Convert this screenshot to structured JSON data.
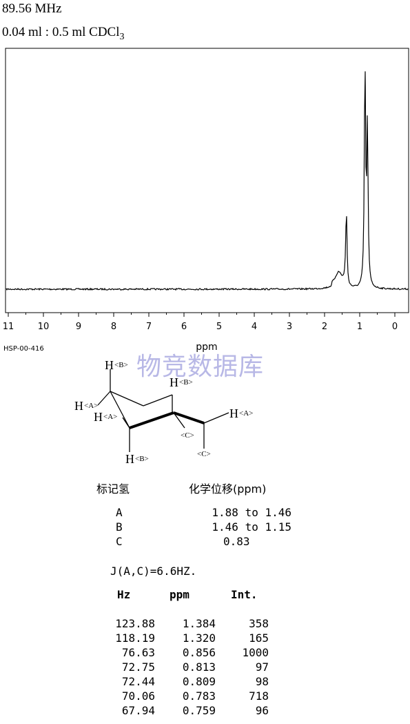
{
  "header": {
    "frequency": "89.56 MHz",
    "solvent_prefix": "0.04 ml : 0.5 ml CDCl",
    "solvent_subscript": "3"
  },
  "chart_data": {
    "type": "line",
    "xlabel": "ppm",
    "xlim": [
      11,
      0
    ],
    "x_reversed": true,
    "ticks": [
      "11",
      "10",
      "9",
      "8",
      "7",
      "6",
      "5",
      "4",
      "3",
      "2",
      "1",
      "0"
    ],
    "grid": false,
    "peaks": [
      {
        "ppm": 1.6,
        "relative_height": 0.06
      },
      {
        "ppm": 1.38,
        "relative_height": 0.35
      },
      {
        "ppm": 0.85,
        "relative_height": 1.0
      },
      {
        "ppm": 0.78,
        "relative_height": 0.71
      }
    ]
  },
  "code_label": "HSP-00-416",
  "watermark": "物竞数据库",
  "structure": {
    "labels": {
      "hb_top_left": "H",
      "hb_top_left_sub": "<B>",
      "ha_left": "H",
      "ha_left_sub": "<A>",
      "ha_left2": "H",
      "ha_left2_sub": "<A>",
      "hb_bottom": "H",
      "hb_bottom_sub": "<B>",
      "hb_top_right": "H",
      "hb_top_right_sub": "<B>",
      "ha_right": "H",
      "ha_right_sub": "<A>",
      "c_mid": "<C>",
      "c_right": "<C>"
    }
  },
  "shift_table": {
    "header_label": "标记氢",
    "header_shift": "化学位移(ppm)",
    "rows": [
      {
        "label": "A",
        "value": "1.88 to 1.46"
      },
      {
        "label": "B",
        "value": "1.46 to 1.15"
      },
      {
        "label": "C",
        "value": "0.83"
      }
    ]
  },
  "coupling": "J(A,C)=6.6HZ.",
  "peak_table": {
    "headers": {
      "hz": "Hz",
      "ppm": "ppm",
      "int": "Int."
    },
    "rows": [
      {
        "hz": "123.88",
        "ppm": "1.384",
        "int": "358"
      },
      {
        "hz": "118.19",
        "ppm": "1.320",
        "int": "165"
      },
      {
        "hz": "76.63",
        "ppm": "0.856",
        "int": "1000"
      },
      {
        "hz": "72.75",
        "ppm": "0.813",
        "int": "97"
      },
      {
        "hz": "72.44",
        "ppm": "0.809",
        "int": "98"
      },
      {
        "hz": "70.06",
        "ppm": "0.783",
        "int": "718"
      },
      {
        "hz": "67.94",
        "ppm": "0.759",
        "int": "96"
      }
    ]
  }
}
